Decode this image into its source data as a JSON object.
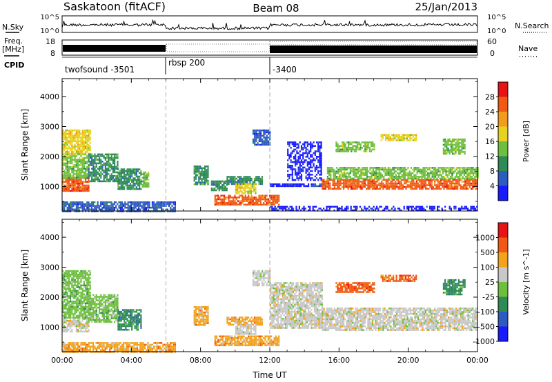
{
  "header": {
    "station": "Saskatoon (fitACF)",
    "beam": "Beam 08",
    "date": "25/Jan/2013"
  },
  "params_panel": {
    "nsky_label": "N.Sky",
    "nsky_ticks": [
      "10^5",
      "10^0"
    ],
    "nsearch_label": "N.Search",
    "nsearch_ticks": [
      "10^5",
      "10^0"
    ],
    "freq_label": "Freq.",
    "freq_unit": "[MHz]",
    "freq_ticks": [
      "18",
      "8"
    ],
    "nave_label": "Nave",
    "nave_ticks": [
      "60",
      "0"
    ],
    "cpid_label": "CPID",
    "cpid_segments": [
      {
        "name": "twofsound -3501",
        "start": 0,
        "end": 6
      },
      {
        "name": "rbsp 200",
        "start": 6,
        "end": 12
      },
      {
        "name": "-3400",
        "start": 12,
        "end": 24
      }
    ]
  },
  "chart_data": [
    {
      "type": "heatmap",
      "title": "",
      "xlabel": "Time UT",
      "ylabel": "Slant Range [km]",
      "xlim": [
        0,
        24
      ],
      "ylim": [
        180,
        4600
      ],
      "x_ticks": [
        "00:00",
        "04:00",
        "08:00",
        "12:00",
        "16:00",
        "20:00",
        "00:00"
      ],
      "y_ticks": [
        1000,
        2000,
        3000,
        4000
      ],
      "colorbar": {
        "label": "Power [dB]",
        "range": [
          0,
          32
        ],
        "ticks": [
          4,
          8,
          12,
          16,
          20,
          24,
          28
        ],
        "colors": [
          "#1a1aff",
          "#2e5bbf",
          "#2e8b57",
          "#6fbf3f",
          "#e6d21f",
          "#f39b1c",
          "#f05a12",
          "#e61414"
        ]
      },
      "echo_regions": [
        {
          "t": [
            0.0,
            1.5
          ],
          "r": [
            850,
            1300
          ],
          "value": 24
        },
        {
          "t": [
            0.0,
            1.5
          ],
          "r": [
            1300,
            2100
          ],
          "value": 14
        },
        {
          "t": [
            0.0,
            1.6
          ],
          "r": [
            2100,
            2900
          ],
          "value": 16
        },
        {
          "t": [
            1.5,
            3.2
          ],
          "r": [
            1200,
            2100
          ],
          "value": 10
        },
        {
          "t": [
            3.2,
            4.6
          ],
          "r": [
            900,
            1600
          ],
          "value": 8
        },
        {
          "t": [
            4.6,
            5.0
          ],
          "r": [
            1000,
            1500
          ],
          "value": 14
        },
        {
          "t": [
            0.0,
            6.5
          ],
          "r": [
            200,
            500
          ],
          "value": 6
        },
        {
          "t": [
            7.6,
            8.4
          ],
          "r": [
            1100,
            1700
          ],
          "value": 8
        },
        {
          "t": [
            8.6,
            9.5
          ],
          "r": [
            900,
            1200
          ],
          "value": 10
        },
        {
          "t": [
            8.8,
            12.5
          ],
          "r": [
            420,
            720
          ],
          "value": 26
        },
        {
          "t": [
            9.5,
            11.6
          ],
          "r": [
            1100,
            1350
          ],
          "value": 10
        },
        {
          "t": [
            10.0,
            11.2
          ],
          "r": [
            800,
            1100
          ],
          "value": 16
        },
        {
          "t": [
            11.0,
            12.0
          ],
          "r": [
            2400,
            2900
          ],
          "value": 6
        },
        {
          "t": [
            12.0,
            14.5
          ],
          "r": [
            1000,
            1100
          ],
          "value": 3
        },
        {
          "t": [
            13.0,
            15.0
          ],
          "r": [
            1200,
            2500
          ],
          "value": 2
        },
        {
          "t": [
            14.5,
            15.3
          ],
          "r": [
            1000,
            1100
          ],
          "value": 6
        },
        {
          "t": [
            15.0,
            24.0
          ],
          "r": [
            900,
            1250
          ],
          "value": 24
        },
        {
          "t": [
            15.3,
            24.0
          ],
          "r": [
            1250,
            1650
          ],
          "value": 14
        },
        {
          "t": [
            15.8,
            18.0
          ],
          "r": [
            2200,
            2500
          ],
          "value": 14
        },
        {
          "t": [
            18.4,
            20.5
          ],
          "r": [
            2550,
            2750
          ],
          "value": 18
        },
        {
          "t": [
            22.0,
            23.3
          ],
          "r": [
            2100,
            2600
          ],
          "value": 12
        },
        {
          "t": [
            12.0,
            24.0
          ],
          "r": [
            200,
            350
          ],
          "value": 1
        }
      ]
    },
    {
      "type": "heatmap",
      "title": "",
      "xlabel": "Time UT",
      "ylabel": "Slant Range [km]",
      "xlim": [
        0,
        24
      ],
      "ylim": [
        180,
        4600
      ],
      "x_ticks": [
        "00:00",
        "04:00",
        "08:00",
        "12:00",
        "16:00",
        "20:00",
        "00:00"
      ],
      "y_ticks": [
        1000,
        2000,
        3000,
        4000
      ],
      "colorbar": {
        "label": "Velocity [m s^-1]",
        "tick_labels": [
          "1000",
          "500",
          "100",
          "25",
          "-25",
          "-100",
          "-500",
          "-1000"
        ],
        "colors": [
          "#1a1aff",
          "#2e5bbf",
          "#2e8b57",
          "#6fbf3f",
          "#c8c8c8",
          "#f3a21c",
          "#f05a12",
          "#e61414"
        ]
      },
      "echo_regions": [
        {
          "t": [
            0.0,
            1.5
          ],
          "r": [
            850,
            1300
          ],
          "value": 4
        },
        {
          "t": [
            0.0,
            1.6
          ],
          "r": [
            1300,
            2900
          ],
          "value": 3
        },
        {
          "t": [
            1.5,
            3.2
          ],
          "r": [
            1200,
            2100
          ],
          "value": 3
        },
        {
          "t": [
            3.2,
            4.6
          ],
          "r": [
            900,
            1600
          ],
          "value": 2
        },
        {
          "t": [
            0.0,
            6.5
          ],
          "r": [
            200,
            500
          ],
          "value": 5
        },
        {
          "t": [
            7.6,
            8.4
          ],
          "r": [
            1100,
            1700
          ],
          "value": 5
        },
        {
          "t": [
            8.8,
            12.5
          ],
          "r": [
            420,
            720
          ],
          "value": 5
        },
        {
          "t": [
            9.5,
            11.6
          ],
          "r": [
            1100,
            1350
          ],
          "value": 5
        },
        {
          "t": [
            10.0,
            11.2
          ],
          "r": [
            800,
            1100
          ],
          "value": 4
        },
        {
          "t": [
            11.0,
            12.0
          ],
          "r": [
            2400,
            2900
          ],
          "value": 4
        },
        {
          "t": [
            12.0,
            15.0
          ],
          "r": [
            1000,
            2500
          ],
          "value": 4
        },
        {
          "t": [
            15.0,
            24.0
          ],
          "r": [
            900,
            1650
          ],
          "value": 4
        },
        {
          "t": [
            15.8,
            18.0
          ],
          "r": [
            2200,
            2500
          ],
          "value": 6
        },
        {
          "t": [
            18.4,
            20.5
          ],
          "r": [
            2550,
            2750
          ],
          "value": 6
        },
        {
          "t": [
            22.0,
            23.3
          ],
          "r": [
            2100,
            2600
          ],
          "value": 2
        }
      ]
    }
  ]
}
